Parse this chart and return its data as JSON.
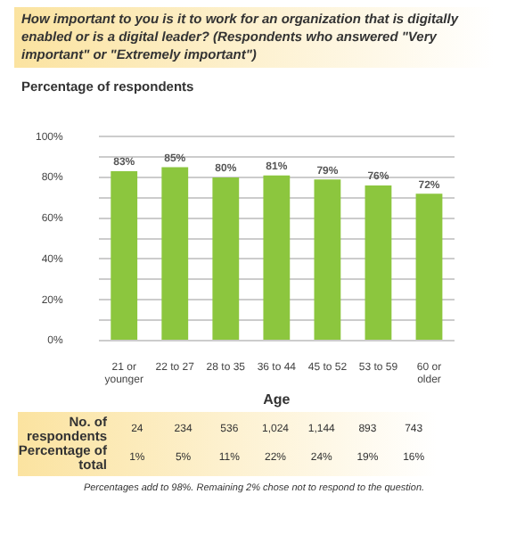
{
  "chart_data": {
    "type": "bar",
    "title": "How important to you is it to work for an organization that is digitally enabled or is a digital leader? (Respondents who answered \"Very important\" or \"Extremely important\")",
    "ylabel": "Percentage of respondents",
    "xlabel": "Age",
    "categories": [
      "21 or younger",
      "22 to 27",
      "28 to 35",
      "36 to 44",
      "45 to 52",
      "53 to 59",
      "60 or older"
    ],
    "values": [
      83,
      85,
      80,
      81,
      79,
      76,
      72
    ],
    "color": "#8cc63e",
    "data_labels": true,
    "value_labels": [
      "83%",
      "85%",
      "80%",
      "81%",
      "79%",
      "76%",
      "72%"
    ],
    "ylim": [
      0,
      100
    ],
    "yticks": [
      {
        "value": 0,
        "label": "0%"
      },
      {
        "value": 10,
        "label": null
      },
      {
        "value": 20,
        "label": "20%"
      },
      {
        "value": 30,
        "label": null
      },
      {
        "value": 40,
        "label": "40%"
      },
      {
        "value": 50,
        "label": null
      },
      {
        "value": 60,
        "label": "60%"
      },
      {
        "value": 70,
        "label": null
      },
      {
        "value": 80,
        "label": "80%"
      },
      {
        "value": 90,
        "label": null
      },
      {
        "value": 100,
        "label": "100%"
      }
    ],
    "grid": "y",
    "annotations": [
      "No. of respondents",
      "24",
      "234",
      "536",
      "1,024",
      "1,144",
      "893",
      "743",
      "Percentage of total",
      "1%",
      "5%",
      "11%",
      "22%",
      "24%",
      "19%",
      "16%",
      "Percentages add to 98%.  Remaining 2% chose not to respond to the question."
    ]
  }
}
